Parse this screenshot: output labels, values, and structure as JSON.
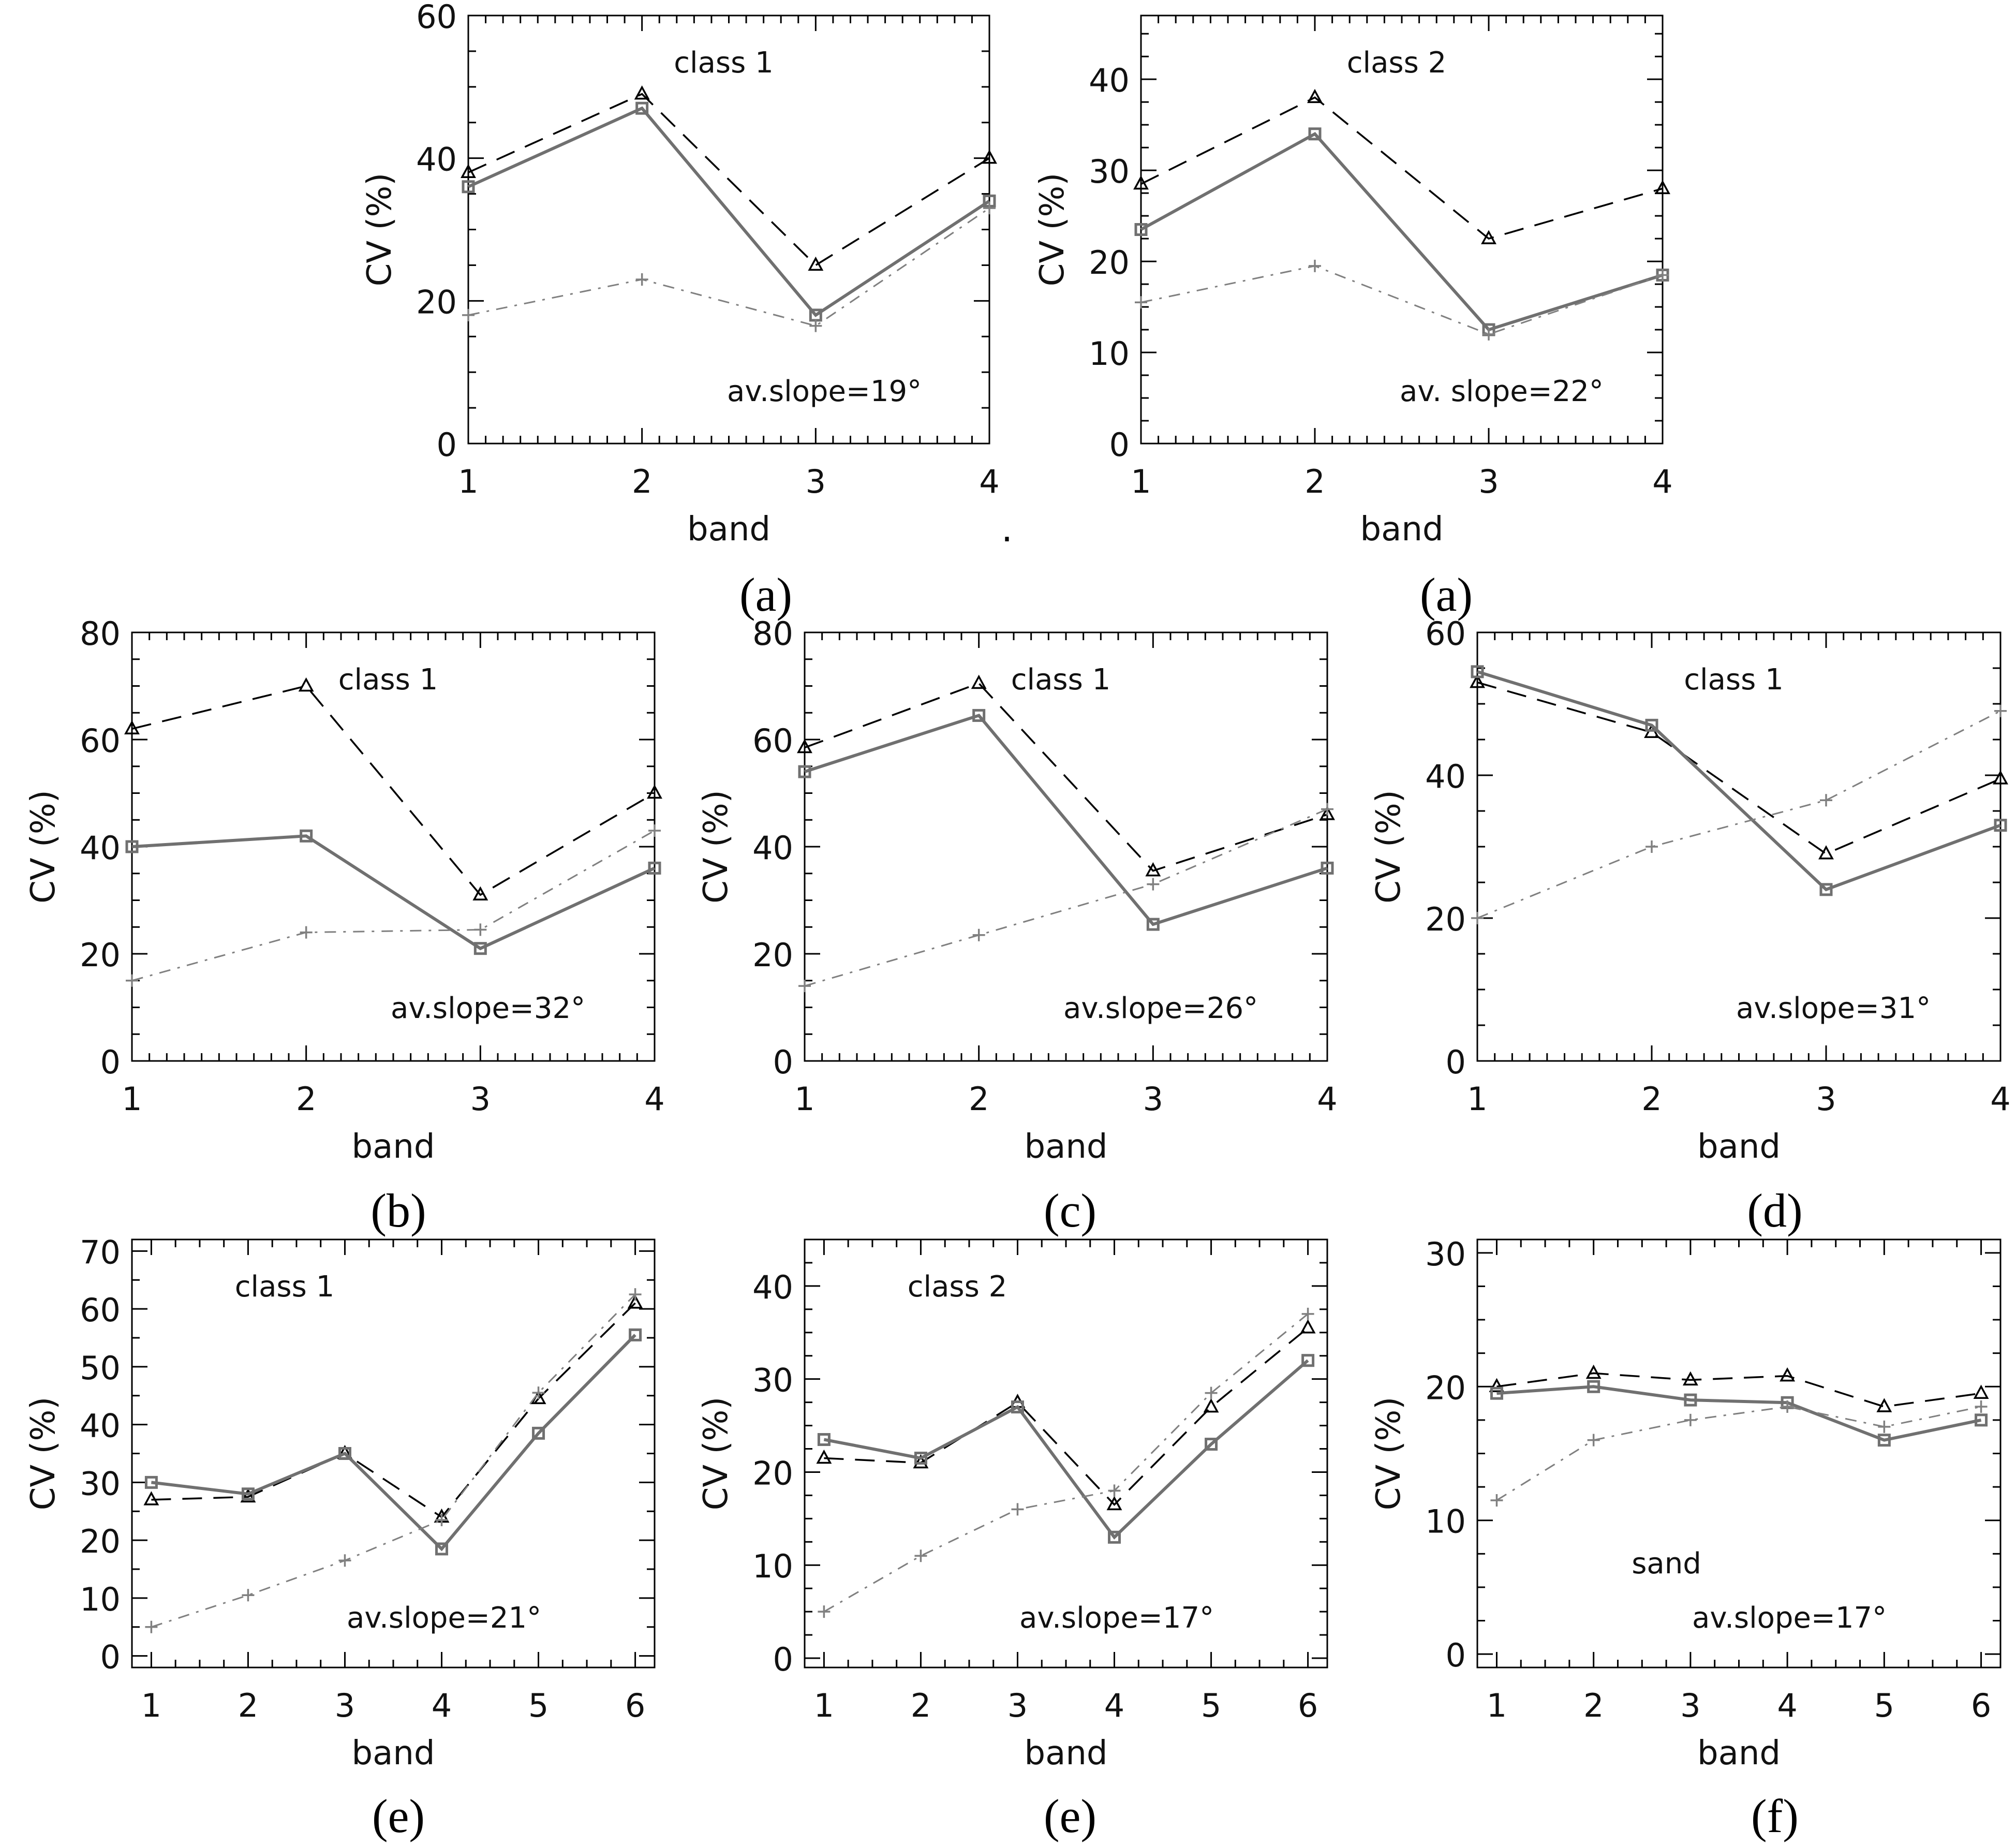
{
  "figure": {
    "stray_mark": "·",
    "series_styles": {
      "triangle": {
        "color": "#000000",
        "line": "dashed",
        "marker": "triangle"
      },
      "square": {
        "color": "#707070",
        "line": "solid",
        "marker": "square"
      },
      "plus": {
        "color": "#808080",
        "line": "dashdot",
        "marker": "plus"
      }
    }
  },
  "chart_data": [
    {
      "id": "a1",
      "type": "line",
      "caption": "(a)",
      "annotation": "class  1",
      "slope_label": "av.slope=19°",
      "xlabel": "band",
      "ylabel": "CV (%)",
      "categories": [
        1,
        2,
        3,
        4
      ],
      "xlim": [
        1,
        4
      ],
      "ylim": [
        0,
        60
      ],
      "yticks": [
        0,
        20,
        40,
        60
      ],
      "y_minor_step": 5,
      "series": [
        {
          "marker": "triangle",
          "values": [
            38,
            49,
            25,
            40
          ]
        },
        {
          "marker": "square",
          "values": [
            36,
            47,
            18,
            34
          ]
        },
        {
          "marker": "plus",
          "values": [
            18,
            23,
            16.5,
            33
          ]
        }
      ]
    },
    {
      "id": "a2",
      "type": "line",
      "caption": "(a)",
      "annotation": "class  2",
      "slope_label": "av. slope=22°",
      "xlabel": "band",
      "ylabel": "CV (%)",
      "categories": [
        1,
        2,
        3,
        4
      ],
      "xlim": [
        1,
        4
      ],
      "ylim": [
        0,
        47
      ],
      "yticks": [
        0,
        10,
        20,
        30,
        40
      ],
      "y_minor_step": 2.5,
      "series": [
        {
          "marker": "triangle",
          "values": [
            28.5,
            38,
            22.5,
            28
          ]
        },
        {
          "marker": "square",
          "values": [
            23.5,
            34,
            12.5,
            18.5
          ]
        },
        {
          "marker": "plus",
          "values": [
            15.5,
            19.5,
            12,
            18.5
          ]
        }
      ]
    },
    {
      "id": "b",
      "type": "line",
      "caption": "(b)",
      "annotation": "class  1",
      "slope_label": "av.slope=32°",
      "xlabel": "band",
      "ylabel": "CV (%)",
      "categories": [
        1,
        2,
        3,
        4
      ],
      "xlim": [
        1,
        4
      ],
      "ylim": [
        0,
        80
      ],
      "yticks": [
        0,
        20,
        40,
        60,
        80
      ],
      "y_minor_step": 5,
      "series": [
        {
          "marker": "triangle",
          "values": [
            62,
            70,
            31,
            50
          ]
        },
        {
          "marker": "square",
          "values": [
            40,
            42,
            21,
            36
          ]
        },
        {
          "marker": "plus",
          "values": [
            15,
            24,
            24.5,
            43
          ]
        }
      ]
    },
    {
      "id": "c",
      "type": "line",
      "caption": "(c)",
      "annotation": "class  1",
      "slope_label": "av.slope=26°",
      "xlabel": "band",
      "ylabel": "CV (%)",
      "categories": [
        1,
        2,
        3,
        4
      ],
      "xlim": [
        1,
        4
      ],
      "ylim": [
        0,
        80
      ],
      "yticks": [
        0,
        20,
        40,
        60,
        80
      ],
      "y_minor_step": 5,
      "series": [
        {
          "marker": "triangle",
          "values": [
            58.5,
            70.5,
            35.5,
            46
          ]
        },
        {
          "marker": "square",
          "values": [
            54,
            64.5,
            25.5,
            36
          ]
        },
        {
          "marker": "plus",
          "values": [
            14,
            23.5,
            33,
            47
          ]
        }
      ]
    },
    {
      "id": "d",
      "type": "line",
      "caption": "(d)",
      "annotation": "class  1",
      "slope_label": "av.slope=31°",
      "xlabel": "band",
      "ylabel": "CV (%)",
      "categories": [
        1,
        2,
        3,
        4
      ],
      "xlim": [
        1,
        4
      ],
      "ylim": [
        0,
        60
      ],
      "yticks": [
        0,
        20,
        40,
        60
      ],
      "y_minor_step": 5,
      "series": [
        {
          "marker": "triangle",
          "values": [
            53,
            46,
            29,
            39.5
          ]
        },
        {
          "marker": "square",
          "values": [
            54.5,
            47,
            24,
            33
          ]
        },
        {
          "marker": "plus",
          "values": [
            20,
            30,
            36.5,
            49
          ]
        }
      ]
    },
    {
      "id": "e1",
      "type": "line",
      "caption": "(e)",
      "annotation": "class  1",
      "slope_label": "av.slope=21°",
      "xlabel": "band",
      "ylabel": "CV (%)",
      "categories": [
        1,
        2,
        3,
        4,
        5,
        6
      ],
      "xlim": [
        0.8,
        6.2
      ],
      "ylim": [
        -2,
        72
      ],
      "yticks": [
        0,
        10,
        20,
        30,
        40,
        50,
        60,
        70
      ],
      "y_minor_step": 5,
      "series": [
        {
          "marker": "triangle",
          "values": [
            27,
            27.5,
            35,
            24,
            44.5,
            61
          ]
        },
        {
          "marker": "square",
          "values": [
            30,
            28,
            35,
            18.5,
            38.5,
            55.5
          ]
        },
        {
          "marker": "plus",
          "values": [
            5,
            10.5,
            16.5,
            23.5,
            45.5,
            62.5
          ]
        }
      ]
    },
    {
      "id": "e2",
      "type": "line",
      "caption": "(e)",
      "annotation": "class  2",
      "slope_label": "av.slope=17°",
      "xlabel": "band",
      "ylabel": "CV (%)",
      "categories": [
        1,
        2,
        3,
        4,
        5,
        6
      ],
      "xlim": [
        0.8,
        6.2
      ],
      "ylim": [
        -1,
        45
      ],
      "yticks": [
        0,
        10,
        20,
        30,
        40
      ],
      "y_minor_step": 2.5,
      "series": [
        {
          "marker": "triangle",
          "values": [
            21.5,
            21,
            27.5,
            16.5,
            27,
            35.5
          ]
        },
        {
          "marker": "square",
          "values": [
            23.5,
            21.5,
            27,
            13,
            23,
            32
          ]
        },
        {
          "marker": "plus",
          "values": [
            5,
            11,
            16,
            18,
            28.5,
            37
          ]
        }
      ]
    },
    {
      "id": "f",
      "type": "line",
      "caption": "(f)",
      "annotation": "sand",
      "slope_label": "av.slope=17°",
      "xlabel": "band",
      "ylabel": "CV (%)",
      "categories": [
        1,
        2,
        3,
        4,
        5,
        6
      ],
      "xlim": [
        0.8,
        6.2
      ],
      "ylim": [
        -1,
        31
      ],
      "yticks": [
        0,
        10,
        20,
        30
      ],
      "y_minor_step": 2.5,
      "series": [
        {
          "marker": "triangle",
          "values": [
            20,
            21,
            20.5,
            20.8,
            18.5,
            19.5
          ]
        },
        {
          "marker": "square",
          "values": [
            19.5,
            20,
            19,
            18.8,
            16,
            17.5
          ]
        },
        {
          "marker": "plus",
          "values": [
            11.5,
            16,
            17.5,
            18.5,
            17,
            18.5
          ]
        }
      ]
    }
  ]
}
